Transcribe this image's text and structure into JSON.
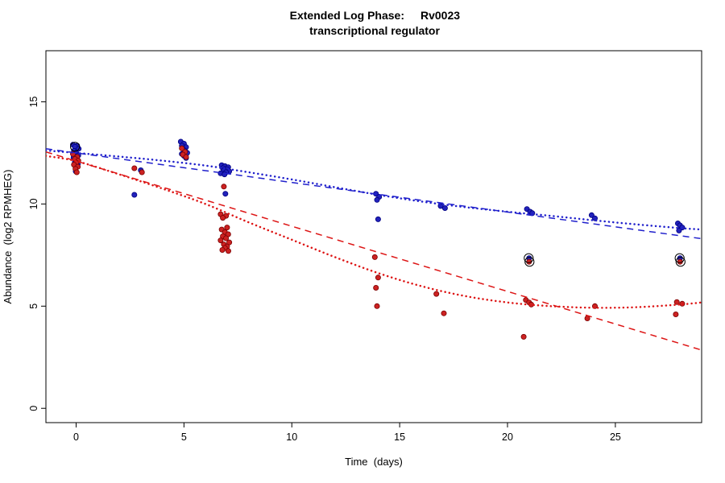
{
  "title": {
    "line1_left": "Extended Log Phase:",
    "line1_right": "Rv0023",
    "line2": "transcriptional regulator"
  },
  "chart_data": {
    "type": "scatter",
    "title": "Extended Log Phase: Rv0023 transcriptional regulator",
    "xlabel": "Time  (days)",
    "ylabel": "Abundance  (log2 RPMHEG)",
    "xlim": [
      -1.4,
      29.0
    ],
    "ylim": [
      -0.7,
      17.5
    ],
    "xticks": [
      0,
      5,
      10,
      15,
      20,
      25
    ],
    "yticks": [
      0,
      5,
      10,
      15
    ],
    "grid": false,
    "legend": "none",
    "series": [
      {
        "name": "blue",
        "point_color": "#2222bb",
        "point_stroke": "#000080",
        "points": [
          [
            -0.15,
            12.9
          ],
          [
            0.05,
            12.85
          ],
          [
            -0.05,
            12.8
          ],
          [
            0.12,
            12.7
          ],
          [
            -0.1,
            12.6
          ],
          [
            0.0,
            12.5
          ],
          [
            0.1,
            12.38
          ],
          [
            -0.12,
            12.28
          ],
          [
            0.04,
            12.18
          ],
          [
            -0.06,
            12.05
          ],
          [
            0.08,
            11.95
          ],
          [
            -0.02,
            11.6
          ],
          [
            2.7,
            10.45
          ],
          [
            3.0,
            11.65
          ],
          [
            4.85,
            13.05
          ],
          [
            5.0,
            12.95
          ],
          [
            4.9,
            12.85
          ],
          [
            5.1,
            12.78
          ],
          [
            4.95,
            12.7
          ],
          [
            5.05,
            12.6
          ],
          [
            5.15,
            12.5
          ],
          [
            4.9,
            12.45
          ],
          [
            5.0,
            12.35
          ],
          [
            5.1,
            12.25
          ],
          [
            6.75,
            11.9
          ],
          [
            6.9,
            11.85
          ],
          [
            7.05,
            11.8
          ],
          [
            6.8,
            11.75
          ],
          [
            7.0,
            11.7
          ],
          [
            6.85,
            11.65
          ],
          [
            7.1,
            11.6
          ],
          [
            6.95,
            11.55
          ],
          [
            6.7,
            11.5
          ],
          [
            6.88,
            11.45
          ],
          [
            6.92,
            10.5
          ],
          [
            13.9,
            10.5
          ],
          [
            14.05,
            10.35
          ],
          [
            13.95,
            10.2
          ],
          [
            14.0,
            9.25
          ],
          [
            16.9,
            9.9
          ],
          [
            17.1,
            9.8
          ],
          [
            20.9,
            9.75
          ],
          [
            21.05,
            9.62
          ],
          [
            21.15,
            9.55
          ],
          [
            21.0,
            7.35
          ],
          [
            23.9,
            9.45
          ],
          [
            24.05,
            9.3
          ],
          [
            27.9,
            9.05
          ],
          [
            28.0,
            8.95
          ],
          [
            28.1,
            8.85
          ],
          [
            27.95,
            8.7
          ],
          [
            28.0,
            7.35
          ]
        ]
      },
      {
        "name": "red",
        "point_color": "#cc2222",
        "point_stroke": "#7a0000",
        "points": [
          [
            -0.15,
            12.45
          ],
          [
            0.05,
            12.3
          ],
          [
            -0.05,
            12.2
          ],
          [
            0.1,
            12.12
          ],
          [
            0.0,
            12.02
          ],
          [
            -0.1,
            11.92
          ],
          [
            0.08,
            11.82
          ],
          [
            -0.03,
            11.72
          ],
          [
            0.03,
            11.55
          ],
          [
            2.7,
            11.75
          ],
          [
            3.05,
            11.55
          ],
          [
            4.9,
            12.72
          ],
          [
            5.05,
            12.55
          ],
          [
            4.95,
            12.42
          ],
          [
            5.1,
            12.3
          ],
          [
            6.85,
            10.85
          ],
          [
            6.7,
            9.5
          ],
          [
            6.95,
            9.42
          ],
          [
            6.8,
            9.32
          ],
          [
            7.0,
            8.85
          ],
          [
            6.75,
            8.75
          ],
          [
            6.9,
            8.62
          ],
          [
            7.05,
            8.52
          ],
          [
            6.8,
            8.42
          ],
          [
            6.95,
            8.32
          ],
          [
            6.7,
            8.22
          ],
          [
            7.1,
            8.12
          ],
          [
            6.85,
            8.02
          ],
          [
            7.0,
            7.92
          ],
          [
            6.9,
            7.85
          ],
          [
            6.78,
            7.75
          ],
          [
            7.06,
            7.7
          ],
          [
            13.85,
            7.4
          ],
          [
            14.0,
            6.4
          ],
          [
            13.9,
            5.9
          ],
          [
            13.95,
            5.0
          ],
          [
            16.7,
            5.6
          ],
          [
            17.05,
            4.65
          ],
          [
            20.85,
            5.3
          ],
          [
            21.0,
            5.18
          ],
          [
            21.1,
            5.08
          ],
          [
            20.75,
            3.5
          ],
          [
            21.0,
            7.17
          ],
          [
            23.7,
            4.4
          ],
          [
            24.05,
            5.0
          ],
          [
            27.85,
            5.2
          ],
          [
            28.1,
            5.12
          ],
          [
            27.8,
            4.6
          ],
          [
            28.0,
            7.17
          ]
        ]
      }
    ],
    "fit_lines": [
      {
        "name": "blue-linear-fit",
        "color": "#2020cc",
        "dash": "dashed",
        "x1": -1.4,
        "y1": 12.7,
        "x2": 29.0,
        "y2": 8.3
      },
      {
        "name": "red-linear-fit",
        "color": "#dd1515",
        "dash": "dashed",
        "x1": -1.4,
        "y1": 12.55,
        "x2": 29.0,
        "y2": 2.85
      }
    ],
    "fit_curves": [
      {
        "name": "blue-smooth-fit",
        "color": "#2020cc",
        "dash": "dotted",
        "points": [
          [
            -1.4,
            12.62
          ],
          [
            0,
            12.5
          ],
          [
            2,
            12.32
          ],
          [
            4,
            12.12
          ],
          [
            6,
            11.88
          ],
          [
            8,
            11.55
          ],
          [
            10,
            11.2
          ],
          [
            12,
            10.82
          ],
          [
            14,
            10.45
          ],
          [
            16,
            10.12
          ],
          [
            18,
            9.85
          ],
          [
            20,
            9.62
          ],
          [
            22,
            9.42
          ],
          [
            24,
            9.2
          ],
          [
            26,
            9.0
          ],
          [
            28,
            8.82
          ],
          [
            29,
            8.75
          ]
        ]
      },
      {
        "name": "red-smooth-fit",
        "color": "#dd1515",
        "dash": "dotted",
        "points": [
          [
            -1.4,
            12.35
          ],
          [
            0,
            12.1
          ],
          [
            2,
            11.45
          ],
          [
            4,
            10.75
          ],
          [
            6,
            10.0
          ],
          [
            8,
            9.1
          ],
          [
            10,
            8.25
          ],
          [
            12,
            7.4
          ],
          [
            14,
            6.62
          ],
          [
            16,
            5.98
          ],
          [
            18,
            5.5
          ],
          [
            20,
            5.18
          ],
          [
            22,
            5.0
          ],
          [
            24,
            4.92
          ],
          [
            26,
            4.95
          ],
          [
            28,
            5.08
          ],
          [
            29,
            5.18
          ]
        ]
      }
    ],
    "highlighted_points": [
      [
        -0.05,
        12.8
      ],
      [
        20.98,
        7.35
      ],
      [
        21.02,
        7.17
      ],
      [
        27.98,
        7.35
      ],
      [
        28.02,
        7.17
      ]
    ]
  }
}
